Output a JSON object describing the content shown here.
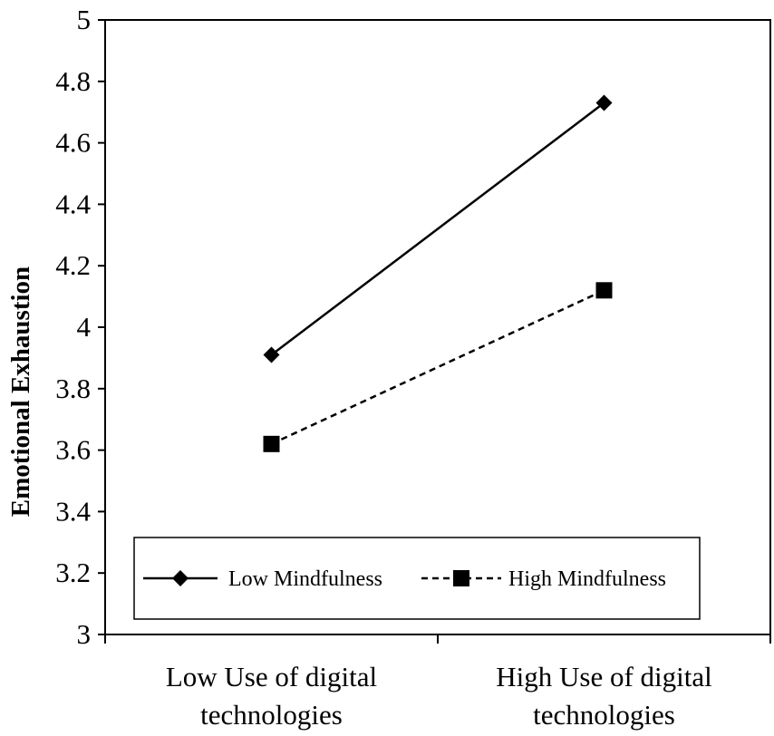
{
  "chart_data": {
    "type": "line",
    "title": "",
    "xlabel": "",
    "ylabel": "Emotional Exhaustion",
    "categories": [
      [
        "Low Use of digital",
        "technologies"
      ],
      [
        "High Use of digital",
        "technologies"
      ]
    ],
    "ylim": [
      3,
      5
    ],
    "yticks": [
      "3",
      "3.2",
      "3.4",
      "3.6",
      "3.8",
      "4",
      "4.2",
      "4.4",
      "4.6",
      "4.8",
      "5"
    ],
    "grid": false,
    "legend_position": "bottom-inside",
    "series": [
      {
        "name": "Low Mindfulness",
        "values": [
          3.91,
          4.73
        ],
        "marker": "diamond",
        "line_style": "solid",
        "color": "#000000"
      },
      {
        "name": "High Mindfulness",
        "values": [
          3.62,
          4.12
        ],
        "marker": "square",
        "line_style": "dashed",
        "color": "#000000"
      }
    ]
  }
}
